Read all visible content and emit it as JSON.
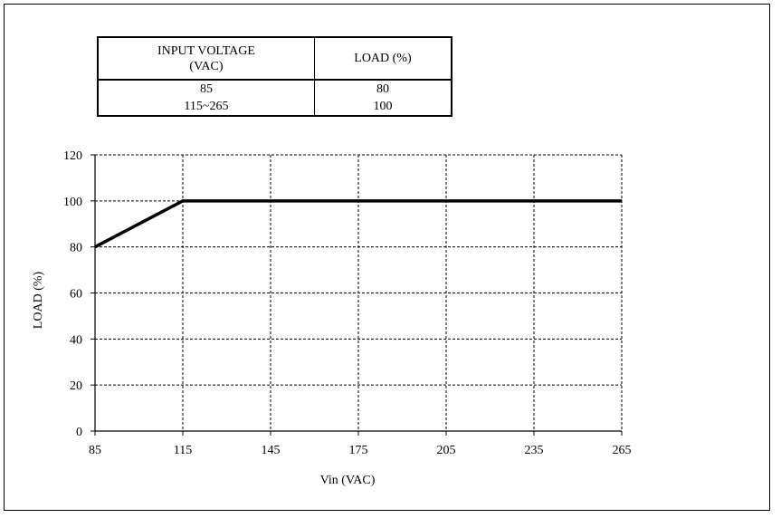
{
  "table": {
    "headers": [
      "INPUT VOLTAGE\n(VAC)",
      "LOAD (%)"
    ],
    "header_lines": [
      [
        "INPUT VOLTAGE",
        "(VAC)"
      ],
      [
        "LOAD (%)"
      ]
    ],
    "rows": [
      [
        "85",
        "80"
      ],
      [
        "115~265",
        "100"
      ]
    ]
  },
  "chart_data": {
    "type": "line",
    "xlabel": "Vin (VAC)",
    "ylabel": "LOAD (%)",
    "xlim": [
      85,
      265
    ],
    "ylim": [
      0,
      120
    ],
    "xticks": [
      85,
      115,
      145,
      175,
      205,
      235,
      265
    ],
    "yticks": [
      0,
      20,
      40,
      60,
      80,
      100,
      120
    ],
    "grid": true,
    "series": [
      {
        "x": [
          85,
          115,
          265
        ],
        "y": [
          80,
          100,
          100
        ]
      }
    ],
    "line_color": "#000000",
    "grid_color": "#000000"
  }
}
